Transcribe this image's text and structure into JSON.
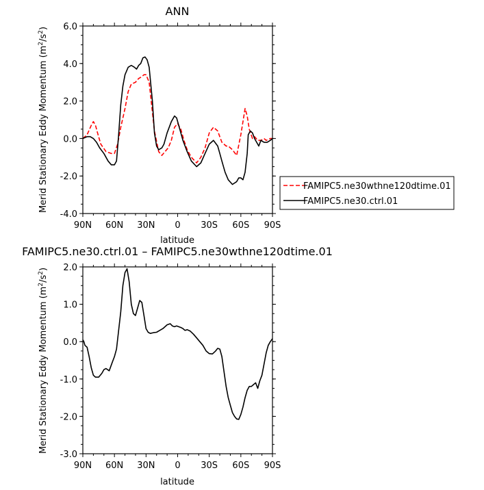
{
  "chart_data": [
    {
      "type": "line",
      "title": "ANN",
      "xlabel": "latitude",
      "ylabel": "Merid Stationary Eddy Momentum (m",
      "ylabel_sup": "2",
      "ylabel_mid": "/s",
      "ylabel_end": ")",
      "xlim": [
        90,
        -90
      ],
      "ylim": [
        -4.0,
        6.0
      ],
      "x_ticks": [
        {
          "v": 90,
          "label": "90N"
        },
        {
          "v": 60,
          "label": "60N"
        },
        {
          "v": 30,
          "label": "30N"
        },
        {
          "v": 0,
          "label": "0"
        },
        {
          "v": -30,
          "label": "30S"
        },
        {
          "v": -60,
          "label": "60S"
        },
        {
          "v": -90,
          "label": "90S"
        }
      ],
      "y_ticks": [
        {
          "v": 6.0,
          "label": "6.0"
        },
        {
          "v": 4.0,
          "label": "4.0"
        },
        {
          "v": 2.0,
          "label": "2.0"
        },
        {
          "v": 0.0,
          "label": "0.0"
        },
        {
          "v": -2.0,
          "label": "-2.0"
        },
        {
          "v": -4.0,
          "label": "-4.0"
        }
      ],
      "grid": false,
      "legend_position": "right",
      "series": [
        {
          "name": "FAMIPC5.ne30wthne120dtime.01",
          "color": "#ff0000",
          "dash": true,
          "x": [
            90,
            86,
            82,
            80,
            78,
            76,
            73,
            68,
            63,
            60,
            57,
            54,
            50,
            47,
            44,
            40,
            37,
            34,
            32,
            30,
            27,
            22,
            18,
            15,
            12,
            9,
            6,
            3,
            0,
            -3,
            -6,
            -9,
            -13,
            -18,
            -22,
            -26,
            -30,
            -34,
            -38,
            -42,
            -46,
            -48,
            -52,
            -56,
            -60,
            -64,
            -66,
            -68,
            -71,
            -73,
            -76,
            -79,
            -82,
            -84,
            -86,
            -88,
            -90
          ],
          "y": [
            0.0,
            0.2,
            0.7,
            0.9,
            0.7,
            0.3,
            -0.3,
            -0.7,
            -0.8,
            -0.8,
            -0.3,
            0.6,
            1.6,
            2.5,
            2.9,
            3.0,
            3.2,
            3.3,
            3.4,
            3.4,
            3.0,
            0.4,
            -0.7,
            -0.9,
            -0.7,
            -0.5,
            -0.1,
            0.6,
            0.8,
            0.5,
            -0.1,
            -0.6,
            -1.0,
            -1.3,
            -1.0,
            -0.5,
            0.3,
            0.6,
            0.4,
            -0.2,
            -0.4,
            -0.4,
            -0.6,
            -0.9,
            0.2,
            1.6,
            1.2,
            0.5,
            0.0,
            0.1,
            -0.1,
            -0.1,
            0.0,
            -0.1,
            -0.05,
            0.0,
            0.0
          ]
        },
        {
          "name": "FAMIPC5.ne30.ctrl.01",
          "color": "#000000",
          "dash": false,
          "x": [
            90,
            88,
            86,
            83,
            80,
            77,
            74,
            70,
            66,
            63,
            60,
            58,
            56,
            54,
            52,
            50,
            47,
            44,
            41,
            39,
            37,
            35,
            33,
            31,
            29,
            27,
            24,
            22,
            20,
            18,
            15,
            13,
            10,
            6,
            3,
            1,
            -2,
            -5,
            -9,
            -13,
            -18,
            -22,
            -26,
            -30,
            -34,
            -38,
            -40,
            -42,
            -45,
            -48,
            -52,
            -56,
            -58,
            -60,
            -62,
            -64,
            -66,
            -67,
            -69,
            -71,
            -73,
            -75,
            -77,
            -79,
            -82,
            -85,
            -88,
            -90
          ],
          "y": [
            0.0,
            0.05,
            0.1,
            0.1,
            0.0,
            -0.2,
            -0.5,
            -0.8,
            -1.2,
            -1.4,
            -1.4,
            -1.2,
            0.2,
            1.8,
            2.8,
            3.4,
            3.8,
            3.9,
            3.8,
            3.7,
            3.9,
            4.0,
            4.3,
            4.35,
            4.2,
            3.8,
            2.0,
            0.3,
            -0.4,
            -0.6,
            -0.5,
            -0.3,
            0.3,
            0.9,
            1.2,
            1.1,
            0.5,
            -0.1,
            -0.7,
            -1.2,
            -1.5,
            -1.3,
            -0.8,
            -0.3,
            -0.1,
            -0.4,
            -0.8,
            -1.2,
            -1.8,
            -2.2,
            -2.45,
            -2.3,
            -2.1,
            -2.1,
            -2.2,
            -1.8,
            -0.8,
            0.2,
            0.4,
            0.3,
            0.0,
            -0.2,
            -0.4,
            -0.1,
            -0.2,
            -0.2,
            -0.1,
            0.0
          ]
        }
      ]
    },
    {
      "type": "line",
      "title": "FAMIPC5.ne30.ctrl.01  –  FAMIPC5.ne30wthne120dtime.01",
      "xlabel": "latitude",
      "ylabel": "Merid Stationary Eddy Momentum (m",
      "ylabel_sup": "2",
      "ylabel_mid": "/s",
      "ylabel_end": ")",
      "xlim": [
        90,
        -90
      ],
      "ylim": [
        -3.0,
        2.0
      ],
      "x_ticks": [
        {
          "v": 90,
          "label": "90N"
        },
        {
          "v": 60,
          "label": "60N"
        },
        {
          "v": 30,
          "label": "30N"
        },
        {
          "v": 0,
          "label": "0"
        },
        {
          "v": -30,
          "label": "30S"
        },
        {
          "v": -60,
          "label": "60S"
        },
        {
          "v": -90,
          "label": "90S"
        }
      ],
      "y_ticks": [
        {
          "v": 2.0,
          "label": "2.0"
        },
        {
          "v": 1.0,
          "label": "1.0"
        },
        {
          "v": 0.0,
          "label": "0.0"
        },
        {
          "v": -1.0,
          "label": "-1.0"
        },
        {
          "v": -2.0,
          "label": "-2.0"
        },
        {
          "v": -3.0,
          "label": "-3.0"
        }
      ],
      "grid": false,
      "series": [
        {
          "color": "#000000",
          "dash": false,
          "x": [
            90,
            89,
            88,
            86,
            84,
            82,
            80,
            78,
            75,
            72,
            70,
            68,
            65,
            62,
            60,
            58,
            56,
            54,
            52,
            50,
            48,
            46,
            44,
            42,
            40,
            38,
            36,
            34,
            32,
            30,
            28,
            26,
            23,
            20,
            17,
            14,
            10,
            7,
            5,
            3,
            1,
            -1,
            -3,
            -5,
            -7,
            -9,
            -12,
            -15,
            -18,
            -21,
            -24,
            -27,
            -30,
            -33,
            -36,
            -38,
            -40,
            -42,
            -44,
            -46,
            -48,
            -50,
            -52,
            -54,
            -56,
            -58,
            -60,
            -62,
            -64,
            -66,
            -68,
            -70,
            -72,
            -74,
            -76,
            -78,
            -80,
            -82,
            -84,
            -86,
            -88,
            -90
          ],
          "y": [
            0.05,
            0.0,
            -0.1,
            -0.15,
            -0.4,
            -0.7,
            -0.9,
            -0.95,
            -0.95,
            -0.85,
            -0.75,
            -0.72,
            -0.78,
            -0.55,
            -0.4,
            -0.2,
            0.3,
            0.8,
            1.5,
            1.85,
            1.95,
            1.6,
            1.0,
            0.75,
            0.7,
            0.9,
            1.1,
            1.05,
            0.7,
            0.35,
            0.25,
            0.22,
            0.24,
            0.25,
            0.3,
            0.35,
            0.45,
            0.48,
            0.42,
            0.4,
            0.42,
            0.4,
            0.38,
            0.35,
            0.3,
            0.32,
            0.28,
            0.2,
            0.1,
            0.0,
            -0.1,
            -0.25,
            -0.32,
            -0.33,
            -0.25,
            -0.18,
            -0.2,
            -0.4,
            -0.8,
            -1.2,
            -1.5,
            -1.7,
            -1.9,
            -2.0,
            -2.07,
            -2.08,
            -1.95,
            -1.75,
            -1.5,
            -1.3,
            -1.2,
            -1.2,
            -1.15,
            -1.1,
            -1.25,
            -1.05,
            -0.9,
            -0.6,
            -0.3,
            -0.1,
            0.0,
            0.08
          ]
        }
      ]
    }
  ],
  "legend": {
    "items": [
      {
        "label": "FAMIPC5.ne30wthne120dtime.01",
        "color": "#ff0000",
        "dash": true
      },
      {
        "label": "FAMIPC5.ne30.ctrl.01",
        "color": "#000000",
        "dash": false
      }
    ]
  }
}
